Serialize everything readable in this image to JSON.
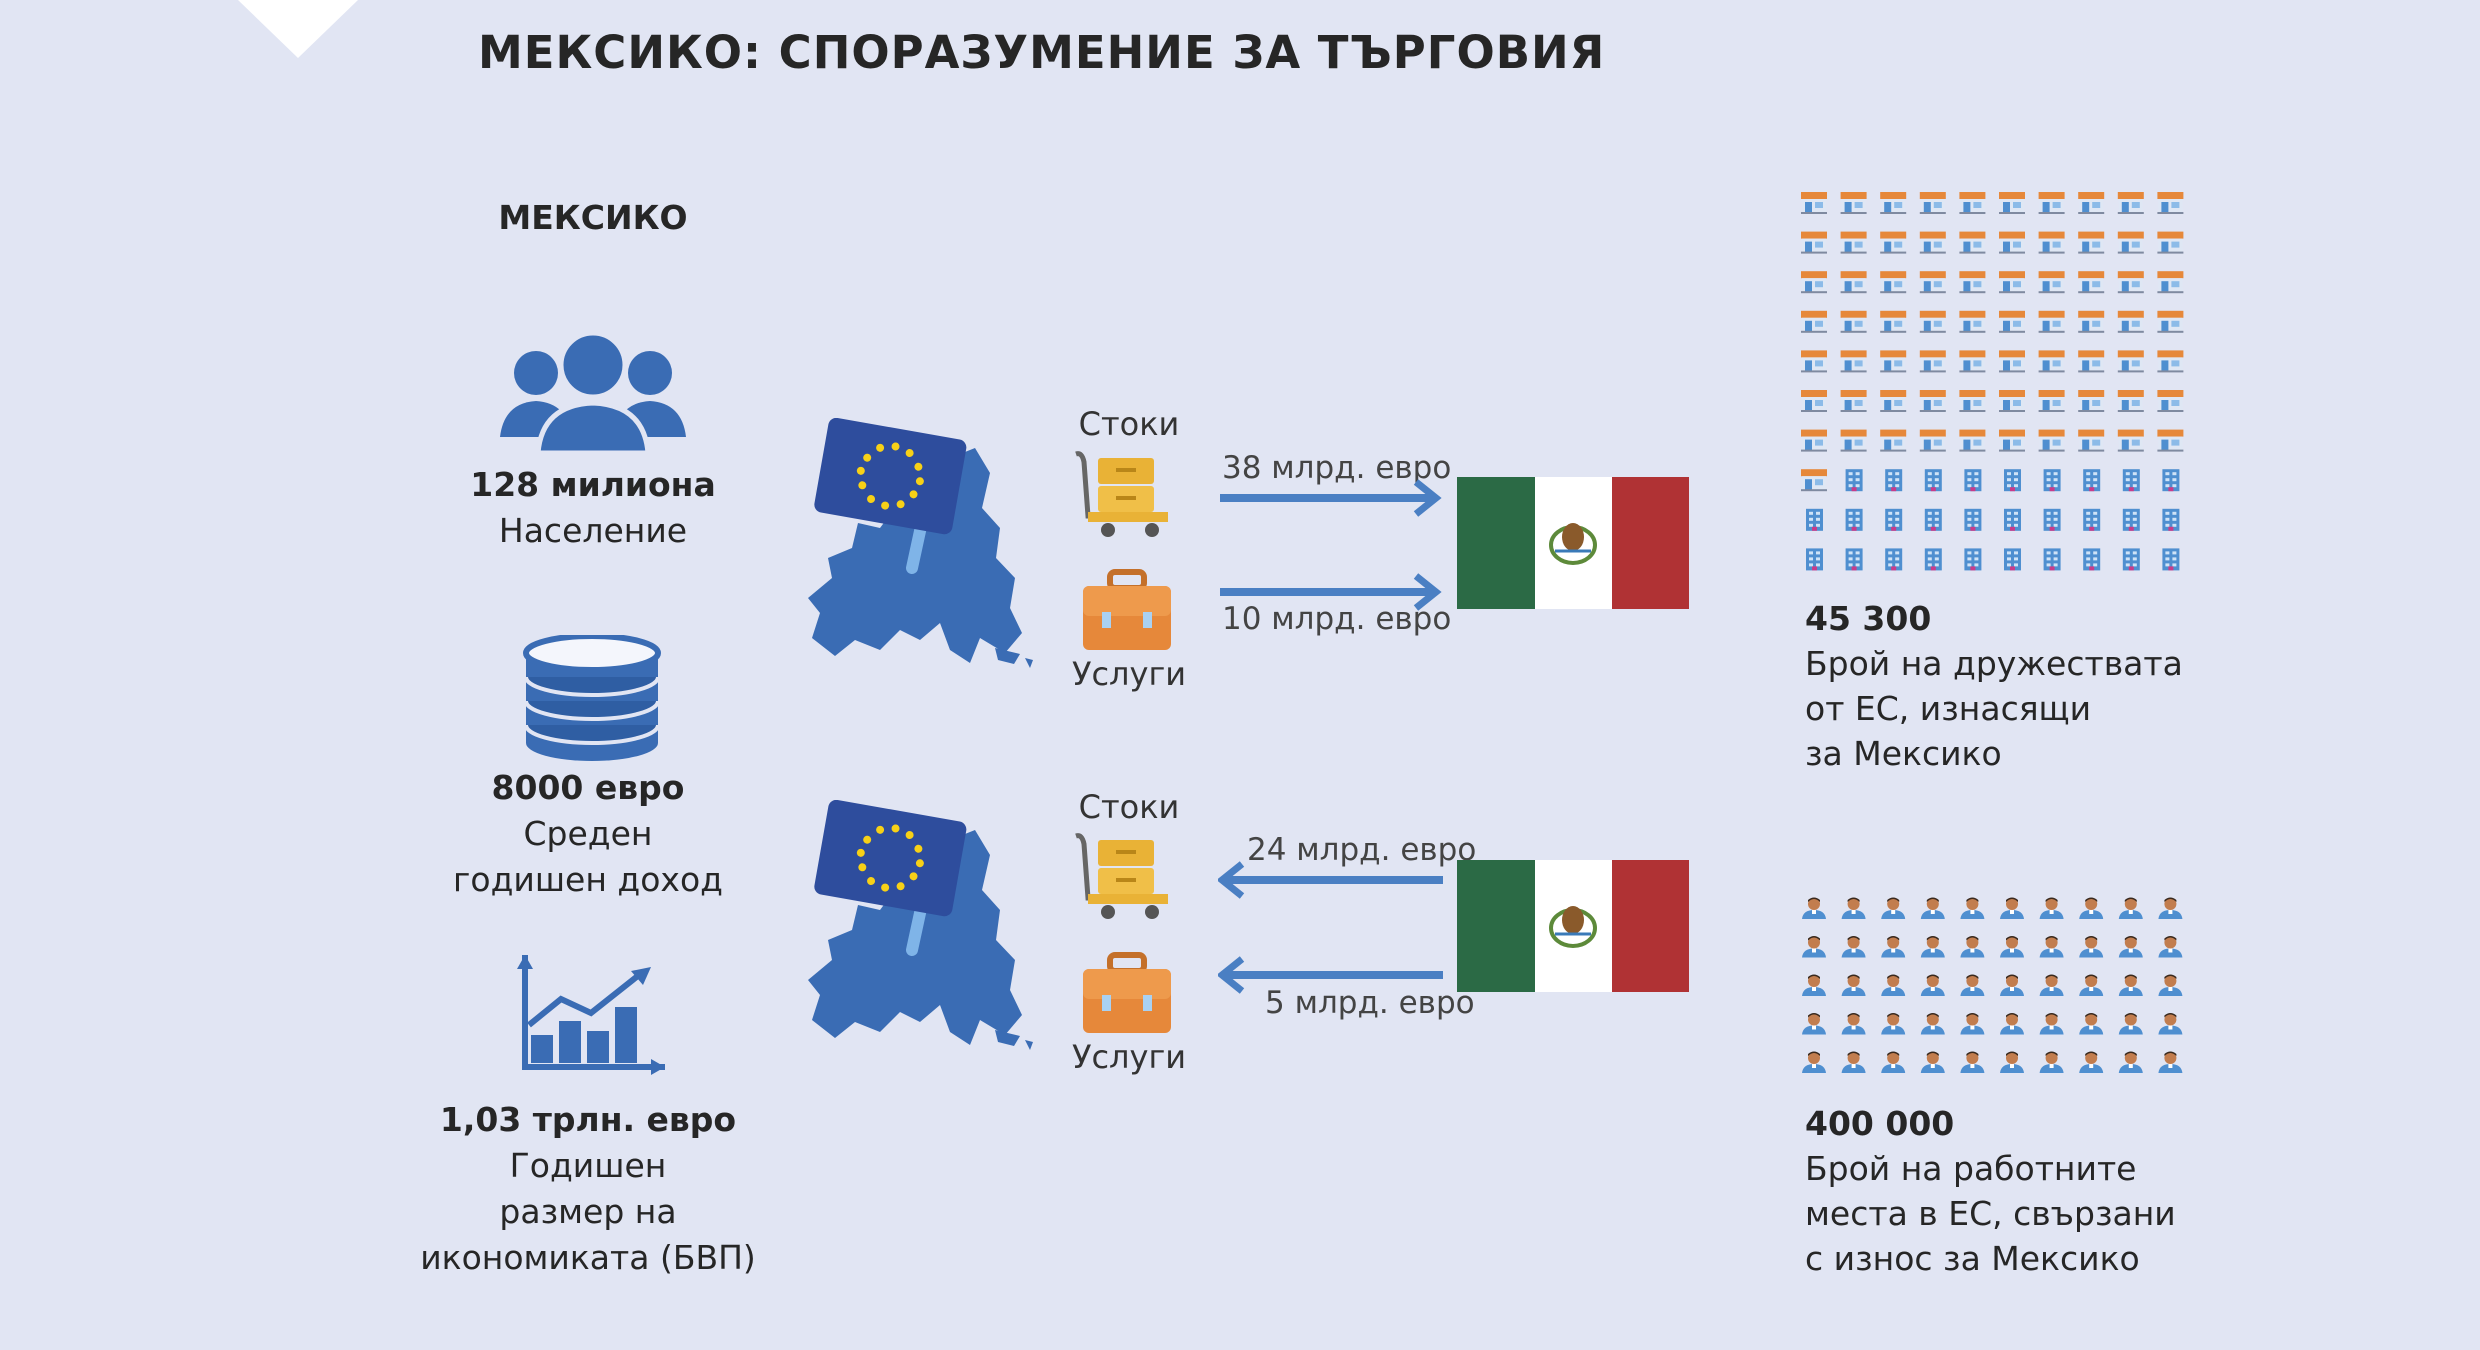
{
  "title": "МЕКСИКО: СПОРАЗУМЕНИЕ ЗА ТЪРГОВИЯ",
  "country_heading": "МЕКСИКО",
  "stats": {
    "population": {
      "value": "128 милиона",
      "label": "Население"
    },
    "income": {
      "value": "8000 евро",
      "label_line1": "Среден",
      "label_line2": "годишен доход"
    },
    "gdp": {
      "value": "1,03 трлн. евро",
      "label_line1": "Годишен",
      "label_line2": "размер на",
      "label_line3": "икономиката (БВП)"
    }
  },
  "exports": {
    "goods_label": "Стоки",
    "services_label": "Услуги",
    "goods_value": "38 млрд. евро",
    "services_value": "10 млрд. евро"
  },
  "imports": {
    "goods_label": "Стоки",
    "services_label": "Услуги",
    "goods_value": "24 млрд. евро",
    "services_value": "5 млрд. евро"
  },
  "companies": {
    "value": "45 300",
    "label_line1": "Брой на дружествата",
    "label_line2": "от ЕС, изнасящи",
    "label_line3": "за Мексико",
    "grid_rows": 10,
    "grid_cols": 10,
    "shop_count": 71
  },
  "jobs": {
    "value": "400 000",
    "label_line1": "Брой на работните",
    "label_line2": "места в ЕС, свързани",
    "label_line3": "с износ за Мексико",
    "grid_rows": 5,
    "grid_cols": 10
  },
  "colors": {
    "icon_blue": "#3a6cb4",
    "arrow_blue": "#4a7fc3",
    "flag_green": "#2b6a45",
    "flag_red": "#b03234",
    "eu_flag_blue": "#2e4d9d",
    "eu_star": "#f7d117",
    "shop_orange": "#e6883a",
    "office_blue": "#4f8fd0",
    "skin": "#c27d4e"
  }
}
